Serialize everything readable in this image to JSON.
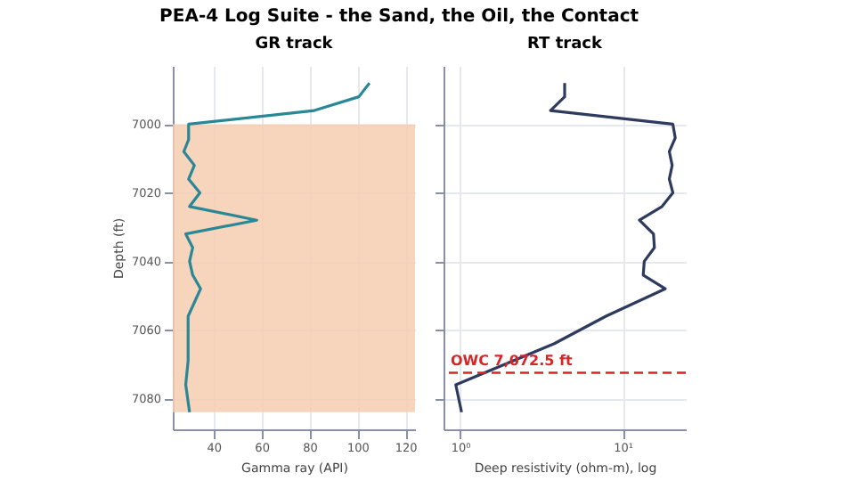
{
  "chart_data": [
    {
      "type": "line",
      "title": "PEA-4 Log Suite - the Sand, the Oil, the Contact",
      "subtitle": "GR track",
      "xlabel": "Gamma ray (API)",
      "ylabel": "Depth (ft)",
      "xlim": [
        23,
        124
      ],
      "xticks": [
        40,
        60,
        80,
        100,
        120
      ],
      "ylim": [
        7089,
        6983
      ],
      "yticks": [
        7000,
        7020,
        7040,
        7060,
        7080
      ],
      "grid": true,
      "bands": [
        {
          "axis": "y",
          "from": 7000,
          "to": 7084,
          "color": "#f6cdb0"
        }
      ],
      "series": [
        {
          "color": "#2a8796",
          "x": [
            105,
            100.6,
            82,
            29.6,
            29.6,
            27.6,
            32,
            29.6,
            34.3,
            30,
            58,
            28.4,
            31.3,
            30,
            31.3,
            34.6,
            29.4,
            29.4,
            28.4,
            30
          ],
          "values": [
            6988,
            6992,
            6996,
            7000,
            7004.5,
            7008,
            7012,
            7016,
            7020,
            7024,
            7028,
            7032,
            7036,
            7040,
            7044,
            7048,
            7056,
            7069,
            7076,
            7084
          ]
        }
      ]
    },
    {
      "type": "line",
      "subtitle": "RT track",
      "xlabel": "Deep resistivity (ohm-m), log",
      "log": "x",
      "xlim": [
        0.79,
        24.5
      ],
      "xticks": [
        {
          "value": 1,
          "label": "10⁰"
        },
        {
          "value": 10,
          "label": "10¹"
        }
      ],
      "ylim": [
        7089,
        6983
      ],
      "yticks": [
        7000,
        7020,
        7040,
        7060,
        7080
      ],
      "tick_labels": "x",
      "grid": true,
      "ref_lines": [
        {
          "axis": "y",
          "value": 7072.5,
          "label": "OWC 7,072.5 ft",
          "color": "#d62728",
          "line_style": "dashed"
        }
      ],
      "series": [
        {
          "color": "#2e3a5e",
          "x": [
            4.4,
            4.4,
            3.6,
            20.4,
            21.1,
            19.4,
            20.2,
            19.4,
            20.4,
            17.5,
            12.7,
            15.5,
            15.7,
            13.6,
            13.4,
            18.3,
            7.9,
            3.8,
            0.94,
            1.02
          ],
          "values": [
            6988,
            6992,
            6996,
            7000,
            7004,
            7008,
            7012,
            7016,
            7020,
            7024,
            7028,
            7032,
            7036,
            7040,
            7044,
            7048,
            7056,
            7064,
            7076,
            7084
          ]
        }
      ]
    }
  ]
}
